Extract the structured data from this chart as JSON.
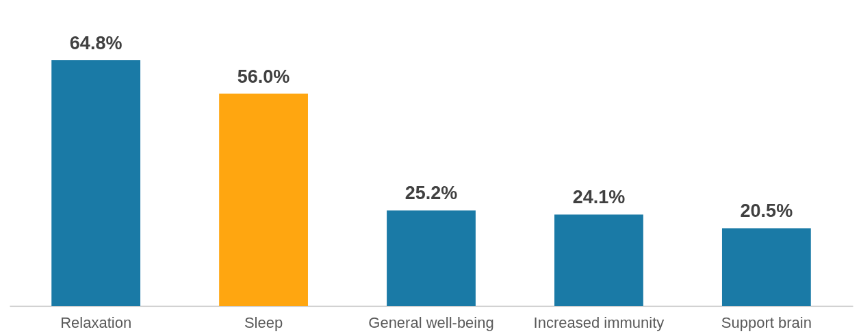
{
  "chart_data": {
    "type": "bar",
    "categories": [
      "Relaxation",
      "Sleep",
      "General well-being",
      "Increased immunity",
      "Support brain"
    ],
    "values": [
      64.8,
      56.0,
      25.2,
      24.1,
      20.5
    ],
    "value_labels": [
      "64.8%",
      "56.0%",
      "25.2%",
      "24.1%",
      "20.5%"
    ],
    "colors": [
      "#1a7aa6",
      "#ffa610",
      "#1a7aa6",
      "#1a7aa6",
      "#1a7aa6"
    ]
  }
}
